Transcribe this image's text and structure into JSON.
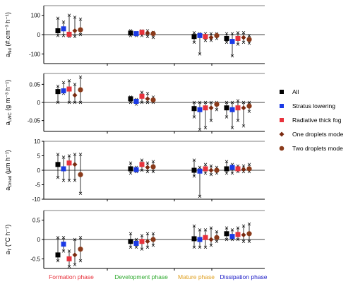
{
  "chart_data": {
    "type": "scatter",
    "categories": [
      "Formation phase",
      "Development phase",
      "Mature phase",
      "Dissipation phase"
    ],
    "category_colors": [
      "#e8323c",
      "#2eaa2e",
      "#e0a020",
      "#2020c8"
    ],
    "series": [
      {
        "name": "All",
        "color": "#000000",
        "marker": "square"
      },
      {
        "name": "Stratus lowering",
        "color": "#1a3ae6",
        "marker": "square"
      },
      {
        "name": "Radiative thick fog",
        "color": "#e8323c",
        "marker": "square"
      },
      {
        "name": "One droplets mode",
        "color": "#7a2a10",
        "marker": "diamond"
      },
      {
        "name": "Two droplets mode",
        "color": "#8a3a1a",
        "marker": "circle"
      }
    ],
    "legend_position": "right",
    "panels": [
      {
        "ylabel_main": "a",
        "ylabel_sub": "Nd",
        "ylabel_unit": " (#.cm⁻³ h⁻¹)",
        "ylim": [
          -150,
          150
        ],
        "yticks": [
          -100,
          0,
          100
        ],
        "ytick_labels": [
          "-100",
          "0",
          "100"
        ],
        "groups": [
          [
            {
              "v": 20,
              "lo": -5,
              "hi": 85
            },
            {
              "v": 30,
              "lo": -5,
              "hi": 65
            },
            {
              "v": 2,
              "lo": -10,
              "hi": 100
            },
            {
              "v": 20,
              "lo": -10,
              "hi": 90
            },
            {
              "v": 25,
              "lo": 0,
              "hi": 80
            }
          ],
          [
            {
              "v": 8,
              "lo": -5,
              "hi": 20
            },
            {
              "v": 5,
              "lo": -5,
              "hi": 10
            },
            {
              "v": 12,
              "lo": -5,
              "hi": 20
            },
            {
              "v": 8,
              "lo": -10,
              "hi": 20
            },
            {
              "v": 5,
              "lo": -15,
              "hi": 12
            }
          ],
          [
            {
              "v": -10,
              "lo": -40,
              "hi": 10
            },
            {
              "v": -5,
              "lo": -100,
              "hi": 5
            },
            {
              "v": -10,
              "lo": -30,
              "hi": 5
            },
            {
              "v": -15,
              "lo": -30,
              "hi": 5
            },
            {
              "v": -5,
              "lo": -20,
              "hi": 5
            }
          ],
          [
            {
              "v": -20,
              "lo": -40,
              "hi": 5
            },
            {
              "v": -35,
              "lo": -110,
              "hi": 5
            },
            {
              "v": -20,
              "lo": -50,
              "hi": 10
            },
            {
              "v": -15,
              "lo": -40,
              "hi": 10
            },
            {
              "v": -25,
              "lo": -45,
              "hi": -5
            }
          ]
        ]
      },
      {
        "ylabel_main": "a",
        "ylabel_sub": "LWC",
        "ylabel_unit": " (g m⁻³ h⁻¹)",
        "ylim": [
          -0.08,
          0.08
        ],
        "yticks": [
          -0.05,
          0,
          0.05
        ],
        "ytick_labels": [
          "-0.05",
          "0",
          "0.05"
        ],
        "groups": [
          [
            {
              "v": 0.03,
              "lo": 0.0,
              "hi": 0.045
            },
            {
              "v": 0.032,
              "lo": 0.025,
              "hi": 0.055
            },
            {
              "v": 0.037,
              "lo": 0.0,
              "hi": 0.06
            },
            {
              "v": 0.02,
              "lo": 0.0,
              "hi": 0.05
            },
            {
              "v": 0.035,
              "lo": 0.0,
              "hi": 0.07
            }
          ],
          [
            {
              "v": 0.01,
              "lo": 0.0,
              "hi": 0.015
            },
            {
              "v": 0.003,
              "lo": -0.005,
              "hi": 0.008
            },
            {
              "v": 0.017,
              "lo": 0.0,
              "hi": 0.028
            },
            {
              "v": 0.01,
              "lo": 0.0,
              "hi": 0.025
            },
            {
              "v": 0.007,
              "lo": 0.0,
              "hi": 0.015
            }
          ],
          [
            {
              "v": -0.017,
              "lo": -0.04,
              "hi": 0.0
            },
            {
              "v": -0.02,
              "lo": -0.075,
              "hi": 0.0
            },
            {
              "v": -0.015,
              "lo": -0.07,
              "hi": 0.0
            },
            {
              "v": -0.015,
              "lo": -0.05,
              "hi": 0.0
            },
            {
              "v": -0.005,
              "lo": -0.02,
              "hi": 0.0
            }
          ],
          [
            {
              "v": -0.015,
              "lo": -0.04,
              "hi": 0.0
            },
            {
              "v": -0.02,
              "lo": -0.07,
              "hi": 0.0
            },
            {
              "v": -0.015,
              "lo": -0.05,
              "hi": 0.005
            },
            {
              "v": -0.015,
              "lo": -0.065,
              "hi": 0.0
            },
            {
              "v": -0.01,
              "lo": -0.025,
              "hi": 0.0
            }
          ]
        ]
      },
      {
        "ylabel_main": "a",
        "ylabel_sub": "Dmed",
        "ylabel_unit": " (µm h⁻¹)",
        "ylim": [
          -10,
          10
        ],
        "yticks": [
          -10,
          -5,
          0,
          5,
          10
        ],
        "ytick_labels": [
          "-10",
          "-5",
          "0",
          "5",
          "10"
        ],
        "groups": [
          [
            {
              "v": 2,
              "lo": -2.5,
              "hi": 5.5
            },
            {
              "v": 0.5,
              "lo": -3.5,
              "hi": 4.5
            },
            {
              "v": 2.5,
              "lo": -3.5,
              "hi": 5
            },
            {
              "v": 2,
              "lo": -3.5,
              "hi": 5.5
            },
            {
              "v": -1.5,
              "lo": -8,
              "hi": 5.5
            }
          ],
          [
            {
              "v": 0.5,
              "lo": -1,
              "hi": 2.5
            },
            {
              "v": 0.2,
              "lo": -0.5,
              "hi": 1
            },
            {
              "v": 2,
              "lo": 0,
              "hi": 3.5
            },
            {
              "v": 1,
              "lo": -0.5,
              "hi": 2.5
            },
            {
              "v": 1.2,
              "lo": -0.5,
              "hi": 3
            }
          ],
          [
            {
              "v": 0,
              "lo": -2,
              "hi": 3.5
            },
            {
              "v": -0.3,
              "lo": -9,
              "hi": 1
            },
            {
              "v": 0.5,
              "lo": -1,
              "hi": 2
            },
            {
              "v": 0,
              "lo": -1.5,
              "hi": 1.5
            },
            {
              "v": 0,
              "lo": -1,
              "hi": 1
            }
          ],
          [
            {
              "v": 0.5,
              "lo": -1,
              "hi": 3
            },
            {
              "v": 1,
              "lo": -1,
              "hi": 2
            },
            {
              "v": 0.5,
              "lo": -0.5,
              "hi": 1.5
            },
            {
              "v": 0.3,
              "lo": -0.5,
              "hi": 1.5
            },
            {
              "v": 0.5,
              "lo": -0.5,
              "hi": 2
            }
          ]
        ]
      },
      {
        "ylabel_main": "a",
        "ylabel_sub": "T",
        "ylabel_unit": " (°C h⁻¹)",
        "ylim": [
          -0.75,
          0.75
        ],
        "yticks": [
          -0.5,
          0,
          0.5
        ],
        "ytick_labels": [
          "-0.5",
          "0",
          "0.5"
        ],
        "groups": [
          [
            {
              "v": -0.4,
              "lo": -0.55,
              "hi": 0.05
            },
            {
              "v": -0.12,
              "lo": -0.3,
              "hi": 0.05
            },
            {
              "v": -0.5,
              "lo": -0.7,
              "hi": -0.3
            },
            {
              "v": -0.4,
              "lo": -0.65,
              "hi": 0.0
            },
            {
              "v": -0.25,
              "lo": -0.55,
              "hi": 0.05
            }
          ],
          [
            {
              "v": -0.05,
              "lo": -0.2,
              "hi": 0.15
            },
            {
              "v": -0.1,
              "lo": -0.2,
              "hi": 0.0
            },
            {
              "v": -0.05,
              "lo": -0.25,
              "hi": 0.1
            },
            {
              "v": -0.05,
              "lo": -0.2,
              "hi": 0.15
            },
            {
              "v": 0.0,
              "lo": -0.15,
              "hi": 0.15
            }
          ],
          [
            {
              "v": 0.02,
              "lo": -0.2,
              "hi": 0.35
            },
            {
              "v": 0.0,
              "lo": -0.2,
              "hi": 0.25
            },
            {
              "v": 0.05,
              "lo": -0.2,
              "hi": 0.25
            },
            {
              "v": 0.0,
              "lo": -0.15,
              "hi": 0.3
            },
            {
              "v": 0.05,
              "lo": -0.05,
              "hi": 0.2
            }
          ],
          [
            {
              "v": 0.15,
              "lo": 0.0,
              "hi": 0.3
            },
            {
              "v": 0.08,
              "lo": 0.0,
              "hi": 0.25
            },
            {
              "v": 0.13,
              "lo": 0.0,
              "hi": 0.3
            },
            {
              "v": 0.12,
              "lo": -0.05,
              "hi": 0.35
            },
            {
              "v": 0.15,
              "lo": -0.05,
              "hi": 0.4
            }
          ]
        ]
      }
    ]
  }
}
